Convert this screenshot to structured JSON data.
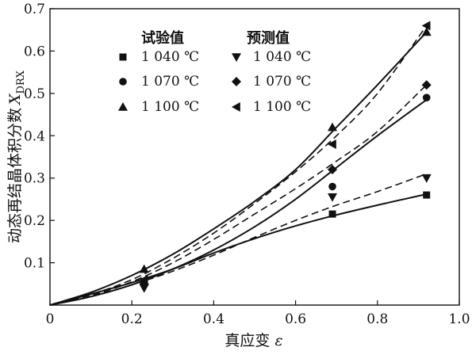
{
  "chart_data": {
    "type": "line",
    "xlabel": "真应变 ε",
    "ylabel": "动态再结晶体积分数 X_DRX",
    "ylabel_main": "动态再结晶体积分数",
    "ylabel_symbol": "X",
    "ylabel_subscript": "DRX",
    "xlabel_main": "真应变",
    "xlabel_symbol": "ε",
    "xlim": [
      0,
      1.0
    ],
    "ylim": [
      0,
      0.7
    ],
    "xticks": [
      "0",
      "0.2",
      "0.4",
      "0.6",
      "0.8",
      "1.0"
    ],
    "yticks": [
      "0.1",
      "0.2",
      "0.3",
      "0.4",
      "0.5",
      "0.6",
      "0.7"
    ],
    "xtick_values": [
      0,
      0.2,
      0.4,
      0.6,
      0.8,
      1.0
    ],
    "ytick_values": [
      0.1,
      0.2,
      0.3,
      0.4,
      0.5,
      0.6,
      0.7
    ],
    "legend": {
      "placement": "top-left",
      "experimental_heading": "试验值",
      "predicted_heading": "预测值",
      "experimental": [
        {
          "label": "1 040 ℃",
          "marker": "square"
        },
        {
          "label": "1 070 ℃",
          "marker": "circle"
        },
        {
          "label": "1 100 ℃",
          "marker": "triangle-up"
        }
      ],
      "predicted": [
        {
          "label": "1 040 ℃",
          "marker": "triangle-down"
        },
        {
          "label": "1 070 ℃",
          "marker": "diamond"
        },
        {
          "label": "1 100 ℃",
          "marker": "triangle-left"
        }
      ]
    },
    "experimental_series": [
      {
        "label": "1 040 ℃",
        "marker": "square",
        "x": [
          0,
          0.23,
          0.69,
          0.92
        ],
        "y": [
          0,
          0.055,
          0.215,
          0.26
        ]
      },
      {
        "label": "1 070 ℃",
        "marker": "circle",
        "x": [
          0,
          0.23,
          0.69,
          0.92
        ],
        "y": [
          0,
          0.055,
          0.28,
          0.49
        ]
      },
      {
        "label": "1 100 ℃",
        "marker": "triangle-up",
        "x": [
          0,
          0.23,
          0.69,
          0.92
        ],
        "y": [
          0,
          0.085,
          0.42,
          0.645
        ]
      }
    ],
    "experimental_fits": [
      {
        "label": "1 040 ℃",
        "x": [
          0,
          0.1,
          0.2,
          0.3,
          0.4,
          0.5,
          0.6,
          0.7,
          0.8,
          0.92
        ],
        "y": [
          0,
          0.026,
          0.053,
          0.085,
          0.123,
          0.157,
          0.187,
          0.213,
          0.236,
          0.262
        ]
      },
      {
        "label": "1 070 ℃",
        "x": [
          0,
          0.1,
          0.2,
          0.3,
          0.4,
          0.5,
          0.6,
          0.7,
          0.8,
          0.92
        ],
        "y": [
          0,
          0.02,
          0.048,
          0.085,
          0.13,
          0.185,
          0.25,
          0.325,
          0.4,
          0.485
        ]
      },
      {
        "label": "1 100 ℃",
        "x": [
          0,
          0.1,
          0.2,
          0.3,
          0.4,
          0.5,
          0.6,
          0.7,
          0.8,
          0.92
        ],
        "y": [
          0,
          0.03,
          0.07,
          0.12,
          0.18,
          0.245,
          0.32,
          0.42,
          0.52,
          0.645
        ]
      }
    ],
    "predicted_series": [
      {
        "label": "1 040 ℃",
        "marker": "triangle-down",
        "x": [
          0,
          0.23,
          0.69,
          0.92
        ],
        "y": [
          0,
          0.04,
          0.255,
          0.3
        ]
      },
      {
        "label": "1 070 ℃",
        "marker": "diamond",
        "x": [
          0,
          0.23,
          0.69,
          0.92
        ],
        "y": [
          0,
          0.05,
          0.32,
          0.52
        ]
      },
      {
        "label": "1 100 ℃",
        "marker": "triangle-left",
        "x": [
          0,
          0.23,
          0.69,
          0.92
        ],
        "y": [
          0,
          0.06,
          0.38,
          0.66
        ]
      }
    ],
    "predicted_fits": [
      {
        "label": "1 040 ℃",
        "x": [
          0,
          0.1,
          0.2,
          0.3,
          0.4,
          0.5,
          0.6,
          0.7,
          0.8,
          0.92
        ],
        "y": [
          0,
          0.02,
          0.048,
          0.08,
          0.118,
          0.16,
          0.2,
          0.236,
          0.268,
          0.31
        ]
      },
      {
        "label": "1 070 ℃",
        "x": [
          0,
          0.1,
          0.2,
          0.3,
          0.4,
          0.5,
          0.6,
          0.7,
          0.8,
          0.92
        ],
        "y": [
          0,
          0.022,
          0.055,
          0.1,
          0.155,
          0.215,
          0.275,
          0.34,
          0.41,
          0.52
        ]
      },
      {
        "label": "1 100 ℃",
        "x": [
          0,
          0.1,
          0.2,
          0.3,
          0.4,
          0.5,
          0.6,
          0.7,
          0.8,
          0.92
        ],
        "y": [
          0,
          0.025,
          0.06,
          0.11,
          0.17,
          0.24,
          0.315,
          0.4,
          0.5,
          0.66
        ]
      }
    ]
  }
}
